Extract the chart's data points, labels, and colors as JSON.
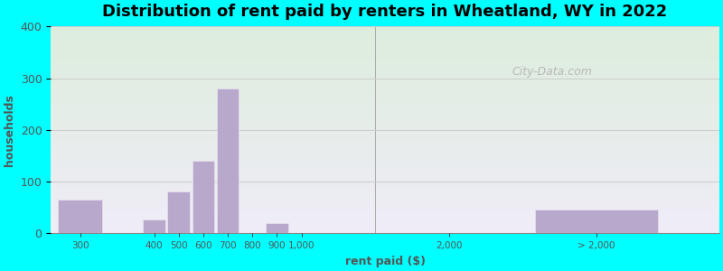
{
  "title": "Distribution of rent paid by renters in Wheatland, WY in 2022",
  "xlabel": "rent paid ($)",
  "ylabel": "households",
  "background_outer": "#00FFFF",
  "bar_color": "#b8a8cc",
  "bar_edge_color": "#e8e0f0",
  "ylim": [
    0,
    400
  ],
  "yticks": [
    0,
    100,
    200,
    300,
    400
  ],
  "grid_color": "#cccccc",
  "title_fontsize": 13,
  "axis_label_fontsize": 9,
  "tick_label_color": "#555555",
  "categories": [
    "300",
    "400",
    "500",
    "600",
    "700",
    "800",
    "900",
    "1,000",
    "2,000",
    "> 2,000"
  ],
  "values": [
    65,
    27,
    80,
    140,
    280,
    0,
    20,
    0,
    0,
    45
  ],
  "bar_positions": [
    0.5,
    2.0,
    2.5,
    3.0,
    3.5,
    4.0,
    4.5,
    5.0,
    8.0,
    11.0
  ],
  "bar_widths": [
    0.9,
    0.45,
    0.45,
    0.45,
    0.45,
    0.45,
    0.45,
    0.45,
    2.5,
    2.5
  ],
  "xlim": [
    -0.1,
    13.5
  ],
  "separator_x": 6.5,
  "watermark": "City-Data.com",
  "gradient_top": "#ddeedd",
  "gradient_bottom": "#f0ecf8"
}
